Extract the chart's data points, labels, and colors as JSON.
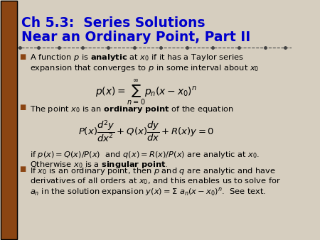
{
  "title_line1": "Ch 5.3:  Series Solutions",
  "title_line2": "Near an Ordinary Point, Part II",
  "title_color": "#0000CC",
  "bg_color": "#D6CEBF",
  "left_bar_color": "#8B4513",
  "separator_color": "#555555",
  "bullet_color": "#8B4513",
  "text_color": "#000000",
  "body_lines": [
    "A function $p$ is \\textbf{analytic} at $x_0$ if it has a Taylor series",
    "expansion that converges to $p$ in some interval about $x_0$"
  ],
  "formula1": "$p(x) = \\sum_{n=0}^{\\infty} p_n(x-x_0)^n$",
  "bullet2": "The point $x_0$ is an \\textbf{ordinary point} of the equation",
  "formula2": "$P(x)\\dfrac{d^2y}{dx^2}+Q(x)\\dfrac{dy}{dx}+R(x)y=0$",
  "text3a": "if $p(x) = Q(x)/P(x)$  and $q(x)= R(x)/P(x)$ are analytic at $x_0$.",
  "text3b": "Otherwise $x_0$ is a \\textbf{singular point}.",
  "bullet3_lines": [
    "If $x_0$ is an ordinary point, then $p$ and $q$ are analytic and have",
    "derivatives of all orders at $x_0$, and this enables us to solve for",
    "$a_n$ in the solution expansion $y(x) = \\Sigma\\ a_n(x - x_0)^n$.  See text."
  ]
}
